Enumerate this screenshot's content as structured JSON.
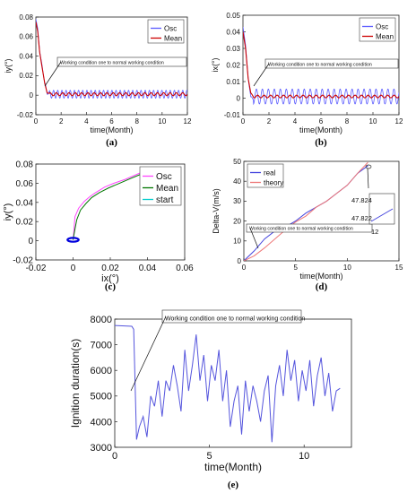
{
  "chart_data": [
    {
      "type": "line",
      "panel_label": "(a)",
      "xlabel": "time(Month)",
      "ylabel": "iy(°)",
      "xlim": [
        0,
        12
      ],
      "ylim": [
        -0.02,
        0.08
      ],
      "xticks": [
        "0",
        "2",
        "4",
        "6",
        "8",
        "10",
        "12"
      ],
      "yticks": [
        "-0.02",
        "0",
        "0.02",
        "0.04",
        "0.06",
        "0.08"
      ],
      "legend_placement": "top-right",
      "annotation": "Working condition one to normal working condition",
      "series": [
        {
          "name": "Osc",
          "color": "#5a5aff",
          "style": "oscillation",
          "decay": [
            [
              0,
              0.078
            ],
            [
              0.15,
              0.068
            ],
            [
              0.3,
              0.045
            ],
            [
              0.5,
              0.03
            ],
            [
              0.7,
              0.012
            ],
            [
              0.9,
              0.003
            ],
            [
              1.1,
              0.001
            ]
          ],
          "amplitude": 0.004,
          "period": 0.33
        },
        {
          "name": "Mean",
          "color": "#cc0000",
          "style": "mean",
          "decay": [
            [
              0,
              0.075
            ],
            [
              0.15,
              0.065
            ],
            [
              0.3,
              0.044
            ],
            [
              0.5,
              0.028
            ],
            [
              0.7,
              0.012
            ],
            [
              0.9,
              0.003
            ],
            [
              1.1,
              0.001
            ]
          ],
          "amplitude": 0.0015,
          "period": 0.5
        }
      ]
    },
    {
      "type": "line",
      "panel_label": "(b)",
      "xlabel": "time(Month)",
      "ylabel": "ix(°)",
      "xlim": [
        0,
        12
      ],
      "ylim": [
        -0.01,
        0.05
      ],
      "xticks": [
        "0",
        "2",
        "4",
        "6",
        "8",
        "10",
        "12"
      ],
      "yticks": [
        "-0.01",
        "0",
        "0.01",
        "0.02",
        "0.03",
        "0.04",
        "0.05"
      ],
      "legend_placement": "top-right",
      "annotation": "Working condition one to normal working condition",
      "series": [
        {
          "name": "Osc",
          "color": "#5a5aff",
          "style": "oscillation",
          "decay": [
            [
              0,
              0.043
            ],
            [
              0.2,
              0.032
            ],
            [
              0.4,
              0.012
            ],
            [
              0.6,
              0.0
            ],
            [
              0.8,
              0.001
            ]
          ],
          "amplitude": 0.0045,
          "period": 0.46
        },
        {
          "name": "Mean",
          "color": "#cc0000",
          "style": "mean",
          "decay": [
            [
              0,
              0.04
            ],
            [
              0.2,
              0.03
            ],
            [
              0.4,
              0.012
            ],
            [
              0.6,
              0.003
            ],
            [
              0.8,
              0.001
            ]
          ],
          "amplitude": 0.0008,
          "period": 0.5
        }
      ]
    },
    {
      "type": "line",
      "panel_label": "(c)",
      "xlabel": "ix(°)",
      "ylabel": "iy(°)",
      "xlim": [
        -0.02,
        0.06
      ],
      "ylim": [
        -0.02,
        0.08
      ],
      "xticks": [
        "-0.02",
        "0",
        "0.02",
        "0.04",
        "0.06"
      ],
      "yticks": [
        "-0.02",
        "0",
        "0.02",
        "0.04",
        "0.06",
        "0.08"
      ],
      "legend_placement": "top-right",
      "series": [
        {
          "name": "Osc",
          "color": "#ff44ff",
          "points": [
            [
              0.0,
              0.001
            ],
            [
              0.0005,
              0.012
            ],
            [
              0.001,
              0.025
            ],
            [
              0.003,
              0.034
            ],
            [
              0.006,
              0.041
            ],
            [
              0.009,
              0.046
            ],
            [
              0.012,
              0.05
            ],
            [
              0.017,
              0.056
            ],
            [
              0.022,
              0.06
            ],
            [
              0.028,
              0.064
            ],
            [
              0.034,
              0.069
            ],
            [
              0.04,
              0.074
            ]
          ]
        },
        {
          "name": "Mean",
          "color": "#007700",
          "points": [
            [
              0.0,
              0.001
            ],
            [
              0.001,
              0.012
            ],
            [
              0.002,
              0.022
            ],
            [
              0.004,
              0.032
            ],
            [
              0.007,
              0.039
            ],
            [
              0.01,
              0.045
            ],
            [
              0.014,
              0.05
            ],
            [
              0.019,
              0.055
            ],
            [
              0.025,
              0.06
            ],
            [
              0.031,
              0.065
            ],
            [
              0.036,
              0.069
            ],
            [
              0.04,
              0.073
            ]
          ]
        },
        {
          "name": "start",
          "color": "#00cccc",
          "points": [
            [
              0.04,
              0.075
            ]
          ]
        },
        {
          "name": "",
          "color": "#0000dd",
          "style": "ring",
          "center": [
            0.0,
            0.001
          ],
          "radius_x": 0.003,
          "radius_y": 0.002
        }
      ]
    },
    {
      "type": "line",
      "panel_label": "(d)",
      "xlabel": "time(Month)",
      "ylabel": "Delta-V(m/s)",
      "xlim": [
        0,
        15
      ],
      "ylim": [
        0,
        50
      ],
      "xticks": [
        "0",
        "5",
        "10",
        "15"
      ],
      "yticks": [
        "0",
        "10",
        "20",
        "30",
        "40",
        "50"
      ],
      "legend_placement": "top-left",
      "annotation": "Working condition one to normal working condition",
      "inset_labels": [
        "47.824",
        "47.822",
        "12"
      ],
      "series": [
        {
          "name": "real",
          "color": "#4444dd",
          "points": [
            [
              0,
              0
            ],
            [
              1,
              5
            ],
            [
              2,
              11
            ],
            [
              3,
              15
            ],
            [
              4,
              17
            ],
            [
              5,
              20
            ],
            [
              6,
              24
            ],
            [
              7,
              27
            ],
            [
              8,
              30
            ],
            [
              9,
              34
            ],
            [
              10,
              38
            ],
            [
              11,
              44
            ],
            [
              12,
              47.82
            ]
          ]
        },
        {
          "name": "theory",
          "color": "#ee7777",
          "points": [
            [
              0,
              0
            ],
            [
              1,
              2.5
            ],
            [
              2,
              6.5
            ],
            [
              3,
              11
            ],
            [
              4,
              15.5
            ],
            [
              5,
              19.5
            ],
            [
              6,
              22.5
            ],
            [
              7,
              27
            ],
            [
              8,
              30
            ],
            [
              9,
              34
            ],
            [
              10,
              38
            ],
            [
              11,
              44
            ],
            [
              12,
              49.5
            ]
          ]
        }
      ]
    },
    {
      "type": "line",
      "panel_label": "(e)",
      "xlabel": "time(Month)",
      "ylabel": "Ignition duration(s)",
      "xlim": [
        0,
        12.5
      ],
      "ylim": [
        3000,
        8000
      ],
      "xticks": [
        "0",
        "5",
        "10"
      ],
      "yticks": [
        "3000",
        "4000",
        "5000",
        "6000",
        "7000",
        "8000"
      ],
      "annotation": "Working condition one to normal working condition",
      "series": [
        {
          "name": "",
          "color": "#5555dd",
          "points": [
            [
              0,
              7750
            ],
            [
              0.9,
              7720
            ],
            [
              1.0,
              7600
            ],
            [
              1.15,
              3300
            ],
            [
              1.3,
              3800
            ],
            [
              1.5,
              4200
            ],
            [
              1.7,
              3400
            ],
            [
              1.9,
              5000
            ],
            [
              2.1,
              4600
            ],
            [
              2.3,
              5600
            ],
            [
              2.5,
              4200
            ],
            [
              2.7,
              5600
            ],
            [
              2.9,
              5200
            ],
            [
              3.1,
              6200
            ],
            [
              3.3,
              5400
            ],
            [
              3.5,
              4400
            ],
            [
              3.7,
              6800
            ],
            [
              3.9,
              5200
            ],
            [
              4.1,
              6200
            ],
            [
              4.3,
              7400
            ],
            [
              4.5,
              5600
            ],
            [
              4.7,
              6600
            ],
            [
              4.9,
              4800
            ],
            [
              5.1,
              6200
            ],
            [
              5.3,
              5600
            ],
            [
              5.5,
              6800
            ],
            [
              5.7,
              4800
            ],
            [
              5.9,
              6000
            ],
            [
              6.1,
              3800
            ],
            [
              6.3,
              4800
            ],
            [
              6.5,
              5400
            ],
            [
              6.7,
              3500
            ],
            [
              6.9,
              5600
            ],
            [
              7.1,
              4400
            ],
            [
              7.3,
              5400
            ],
            [
              7.5,
              4800
            ],
            [
              7.7,
              4000
            ],
            [
              7.9,
              5200
            ],
            [
              8.1,
              5800
            ],
            [
              8.3,
              3200
            ],
            [
              8.5,
              5400
            ],
            [
              8.7,
              6200
            ],
            [
              8.9,
              5000
            ],
            [
              9.1,
              6800
            ],
            [
              9.3,
              5600
            ],
            [
              9.5,
              6400
            ],
            [
              9.7,
              4800
            ],
            [
              9.9,
              6000
            ],
            [
              10.1,
              5200
            ],
            [
              10.3,
              6400
            ],
            [
              10.5,
              4600
            ],
            [
              10.7,
              5800
            ],
            [
              10.9,
              6500
            ],
            [
              11.1,
              5000
            ],
            [
              11.3,
              5900
            ],
            [
              11.5,
              4400
            ],
            [
              11.7,
              5200
            ],
            [
              11.9,
              5300
            ]
          ]
        }
      ]
    }
  ]
}
